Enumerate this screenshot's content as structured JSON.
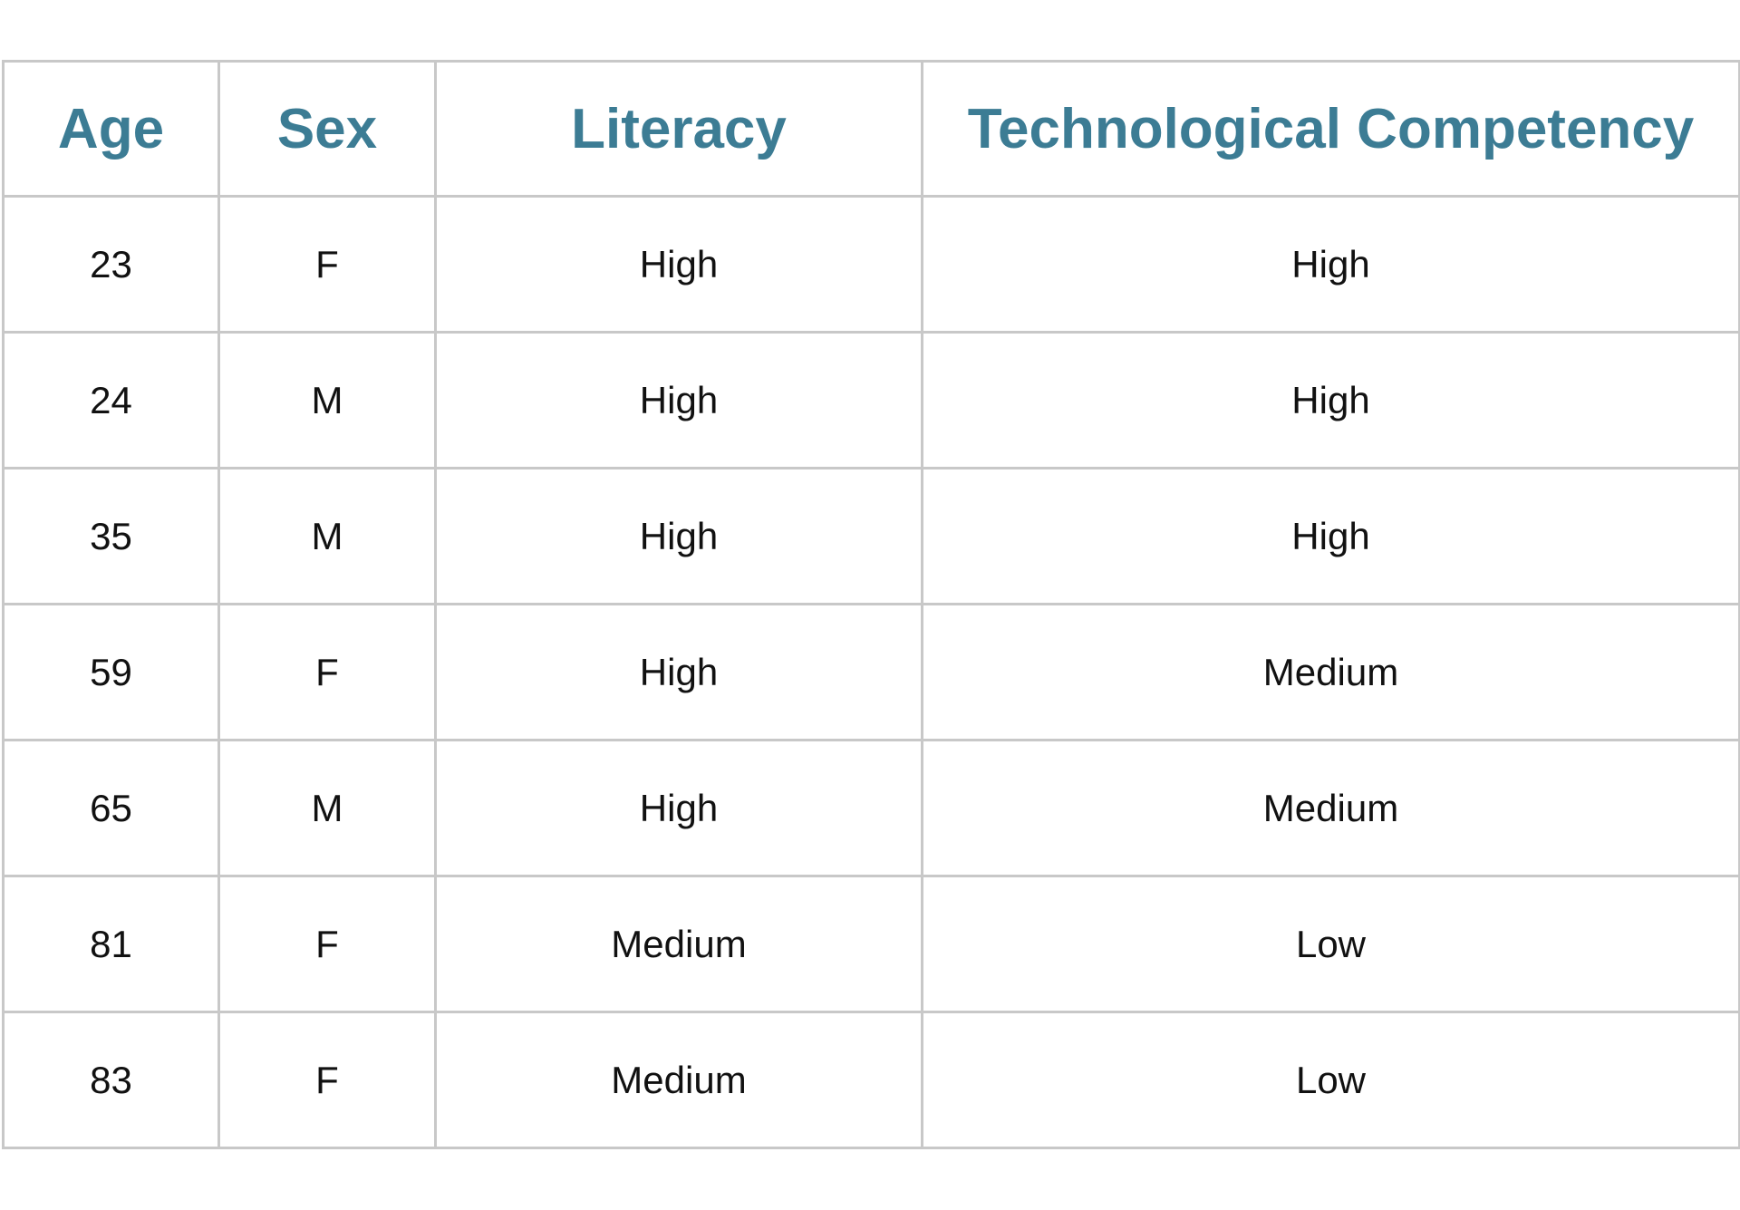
{
  "table": {
    "headers": [
      "Age",
      "Sex",
      "Literacy",
      "Technological Competency"
    ],
    "rows": [
      [
        "23",
        "F",
        "High",
        "High"
      ],
      [
        "24",
        "M",
        "High",
        "High"
      ],
      [
        "35",
        "M",
        "High",
        "High"
      ],
      [
        "59",
        "F",
        "High",
        "Medium"
      ],
      [
        "65",
        "M",
        "High",
        "Medium"
      ],
      [
        "81",
        "F",
        "Medium",
        "Low"
      ],
      [
        "83",
        "F",
        "Medium",
        "Low"
      ]
    ]
  },
  "colors": {
    "header_text": "#3c7c94",
    "grid_line": "#c8c8c8",
    "body_text": "#111111"
  }
}
